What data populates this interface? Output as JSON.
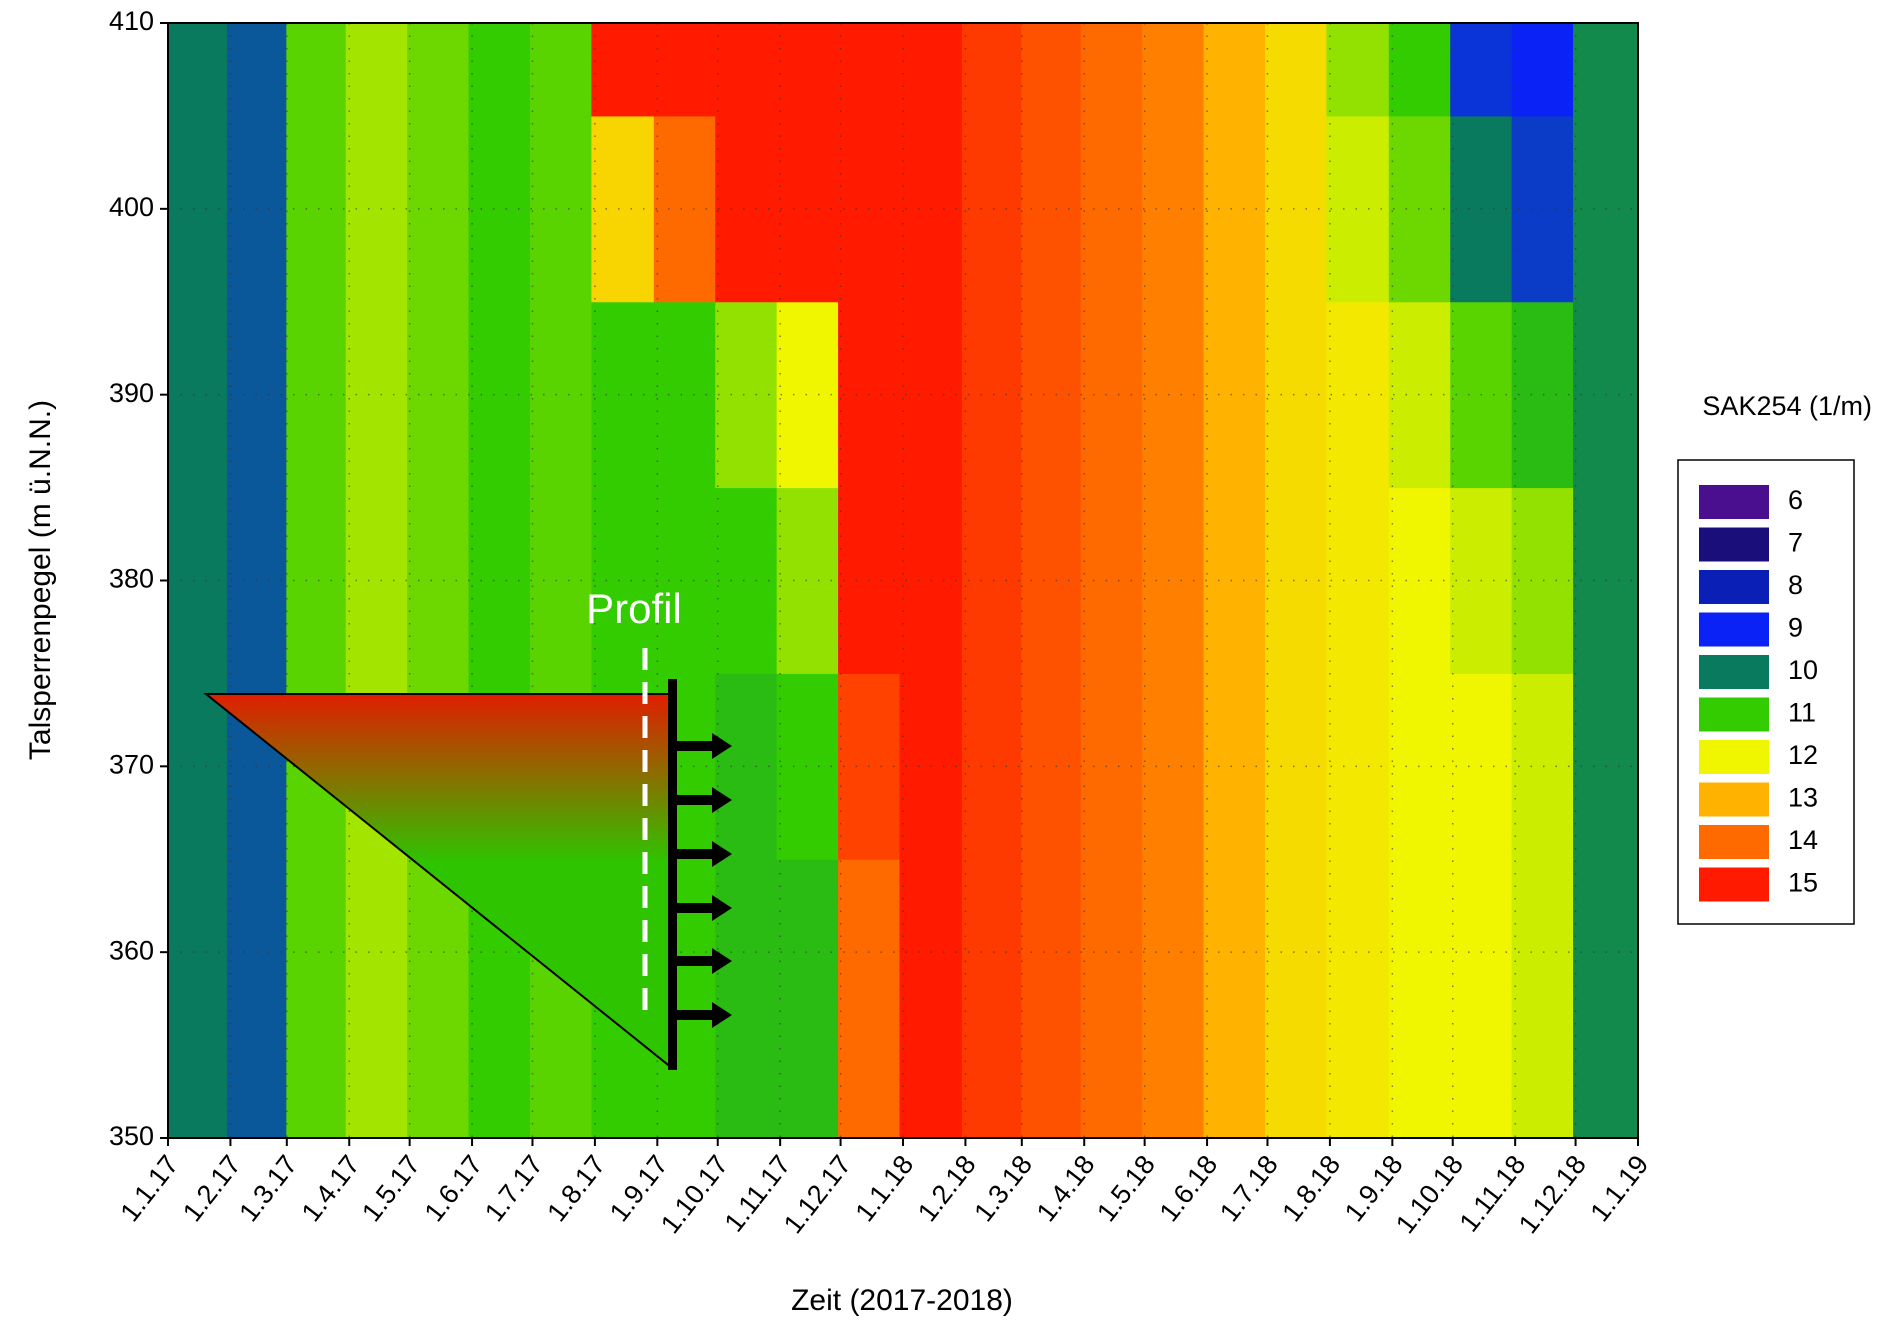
{
  "chart_data": {
    "type": "heatmap",
    "xlabel": "Zeit (2017-2018)",
    "ylabel": "Talsperrenpegel (m ü.N.N.)",
    "annotations": [
      "Profil"
    ],
    "x": [
      "2017-01-15",
      "2017-02-15",
      "2017-03-15",
      "2017-04-15",
      "2017-05-15",
      "2017-06-15",
      "2017-07-15",
      "2017-08-15",
      "2017-09-15",
      "2017-10-15",
      "2017-11-15",
      "2017-12-15",
      "2018-01-15",
      "2018-02-15",
      "2018-03-15",
      "2018-04-15",
      "2018-05-15",
      "2018-06-15",
      "2018-07-15",
      "2018-08-15",
      "2018-09-15",
      "2018-10-15",
      "2018-11-15",
      "2018-12-15"
    ],
    "y": [
      350,
      360,
      370,
      380,
      390,
      400,
      410
    ],
    "z": [
      [
        10,
        9.6,
        11.2,
        11.6,
        11.3,
        11,
        11.2,
        11,
        11,
        10.8,
        10.8,
        14,
        15,
        14.6,
        14.3,
        14,
        13.7,
        13,
        12.4,
        12.2,
        12,
        12,
        11.8,
        10.2
      ],
      [
        10,
        9.6,
        11.2,
        11.6,
        11.3,
        11,
        11.2,
        11,
        11,
        10.8,
        10.8,
        14,
        15,
        14.6,
        14.3,
        14,
        13.7,
        13,
        12.4,
        12.2,
        12,
        12,
        11.8,
        10.2
      ],
      [
        10,
        9.6,
        11.2,
        11.6,
        11.3,
        11,
        11.2,
        11,
        11,
        10.8,
        11,
        14.5,
        15,
        14.6,
        14.3,
        14,
        13.7,
        13,
        12.4,
        12.2,
        12,
        12,
        11.8,
        10.2
      ],
      [
        10,
        9.6,
        11.2,
        11.6,
        11.3,
        11,
        11.2,
        11,
        11,
        11,
        11.5,
        15,
        15,
        14.6,
        14.3,
        14,
        13.7,
        13,
        12.4,
        12.2,
        12,
        11.8,
        11.5,
        10.2
      ],
      [
        10,
        9.6,
        11.2,
        11.6,
        11.3,
        11,
        11.2,
        11,
        11,
        11.5,
        12,
        15,
        15,
        14.6,
        14.3,
        14,
        13.7,
        13,
        12.4,
        12.2,
        11.8,
        11.2,
        10.8,
        10.2
      ],
      [
        10,
        9.6,
        11.2,
        11.6,
        11.3,
        11,
        11.2,
        12.5,
        14,
        15,
        15,
        15,
        15,
        14.6,
        14.3,
        14,
        13.7,
        13,
        12.4,
        11.8,
        11.3,
        10,
        9.3,
        10.2
      ],
      [
        10,
        9.6,
        11.2,
        11.6,
        11.3,
        11,
        11.2,
        15,
        15,
        15,
        15,
        15,
        15,
        14.6,
        14.3,
        14,
        13.7,
        13,
        12.4,
        11.5,
        11,
        9.2,
        9,
        10.2
      ]
    ],
    "xlim": [
      "2017-01-01",
      "2019-01-01"
    ],
    "ylim": [
      350,
      410
    ],
    "xticks": [
      {
        "value": "2017-01-01",
        "label": "1.1.17"
      },
      {
        "value": "2017-02-01",
        "label": "1.2.17"
      },
      {
        "value": "2017-03-01",
        "label": "1.3.17"
      },
      {
        "value": "2017-04-01",
        "label": "1.4.17"
      },
      {
        "value": "2017-05-01",
        "label": "1.5.17"
      },
      {
        "value": "2017-06-01",
        "label": "1.6.17"
      },
      {
        "value": "2017-07-01",
        "label": "1.7.17"
      },
      {
        "value": "2017-08-01",
        "label": "1.8.17"
      },
      {
        "value": "2017-09-01",
        "label": "1.9.17"
      },
      {
        "value": "2017-10-01",
        "label": "1.10.17"
      },
      {
        "value": "2017-11-01",
        "label": "1.11.17"
      },
      {
        "value": "2017-12-01",
        "label": "1.12.17"
      },
      {
        "value": "2018-01-01",
        "label": "1.1.18"
      },
      {
        "value": "2018-02-01",
        "label": "1.2.18"
      },
      {
        "value": "2018-03-01",
        "label": "1.3.18"
      },
      {
        "value": "2018-04-01",
        "label": "1.4.18"
      },
      {
        "value": "2018-05-01",
        "label": "1.5.18"
      },
      {
        "value": "2018-06-01",
        "label": "1.6.18"
      },
      {
        "value": "2018-07-01",
        "label": "1.7.18"
      },
      {
        "value": "2018-08-01",
        "label": "1.8.18"
      },
      {
        "value": "2018-09-01",
        "label": "1.9.18"
      },
      {
        "value": "2018-10-01",
        "label": "1.10.18"
      },
      {
        "value": "2018-11-01",
        "label": "1.11.18"
      },
      {
        "value": "2018-12-01",
        "label": "1.12.18"
      },
      {
        "value": "2019-01-01",
        "label": "1.1.19"
      }
    ],
    "yticks": [
      350,
      360,
      370,
      380,
      390,
      400,
      410
    ],
    "grid": true,
    "colorbar": {
      "title": "SAK254 (1/m)",
      "levels": [
        6,
        7,
        8,
        9,
        10,
        11,
        12,
        13,
        14,
        15
      ],
      "colors": [
        "#4a0f8f",
        "#1a0f7a",
        "#0a1fb5",
        "#0a22f5",
        "#0a7a5e",
        "#33cc00",
        "#f0f500",
        "#ffb300",
        "#ff6a00",
        "#ff1a00"
      ]
    }
  }
}
